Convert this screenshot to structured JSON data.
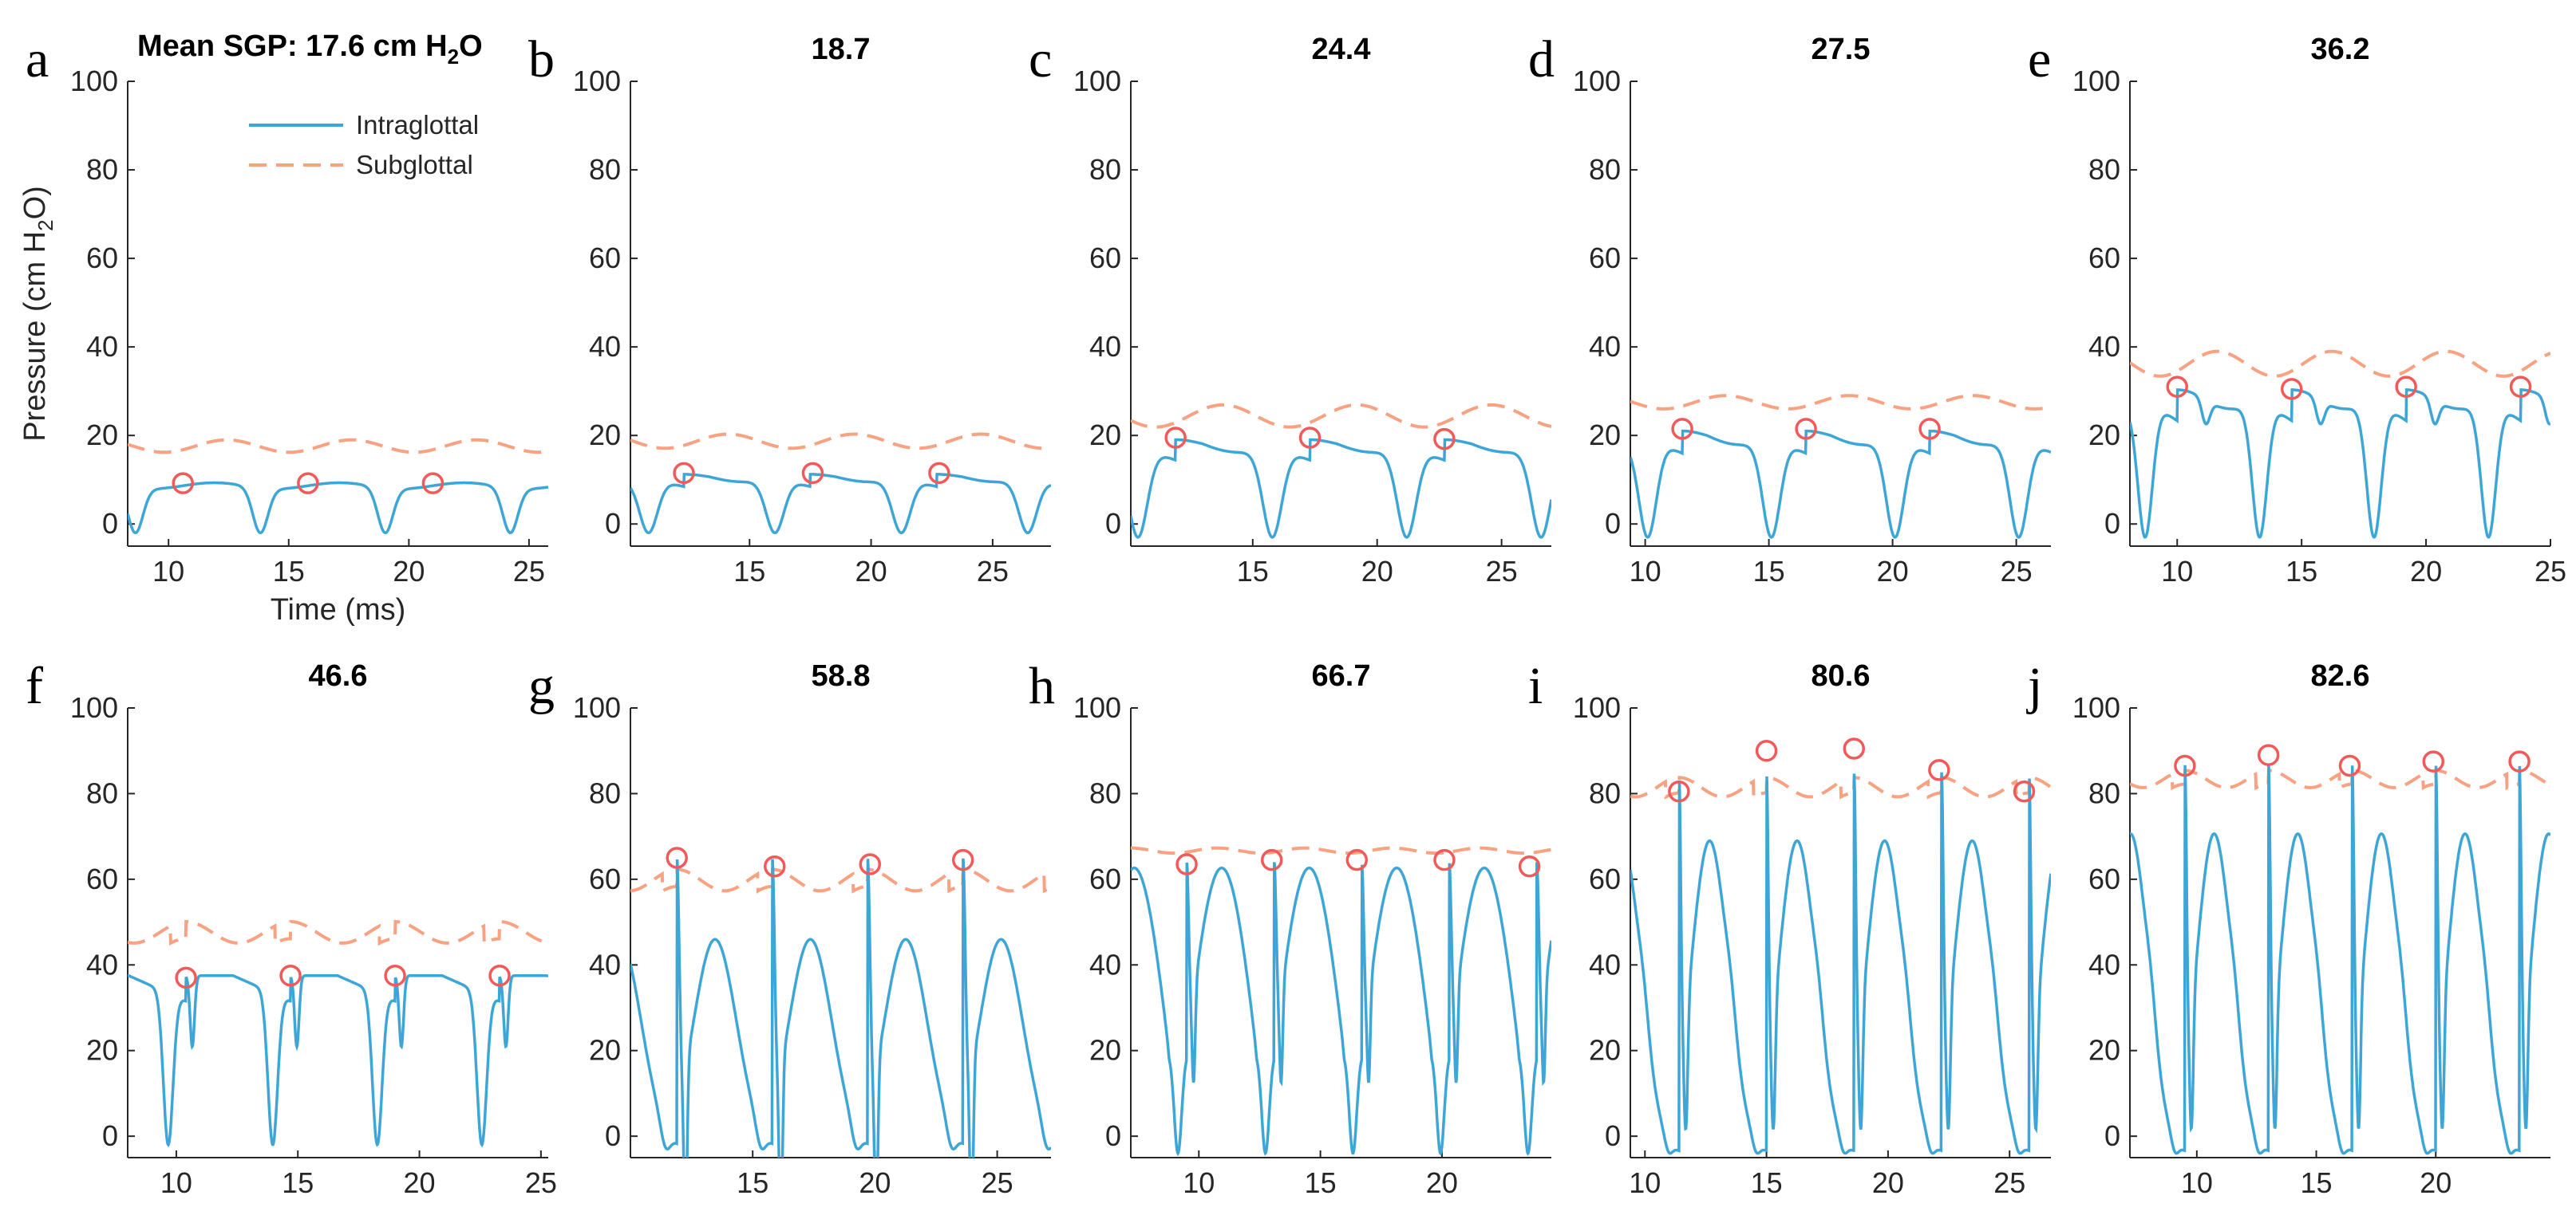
{
  "figure": {
    "title_prefix": "Mean SGP: ",
    "title_unit_main": "cm H",
    "title_unit_sub": "2",
    "title_unit_end": "O",
    "ylabel_main": "Pressure (cm H",
    "ylabel_sub": "2",
    "ylabel_end": "O)",
    "xlabel": "Time (ms)",
    "legend": [
      {
        "label": "Intraglottal",
        "color": "#3ea6d6",
        "style": "solid"
      },
      {
        "label": "Subglottal",
        "color": "#f8a282",
        "style": "dashed"
      }
    ],
    "marker_color": "#f25a5a"
  },
  "chart_data": [
    {
      "panel": "a",
      "type": "line",
      "title": "17.6",
      "ylim": [
        -5,
        100
      ],
      "yticks": [
        0,
        20,
        40,
        60,
        80,
        100
      ],
      "xlim": [
        8.3,
        25.8
      ],
      "xticks": [
        10,
        15,
        20,
        25
      ],
      "period": 5.2,
      "phase": 10.6,
      "sgp_mean": 17.6,
      "sgp_amp": 1.4,
      "ig_peak": 9.2,
      "ig_min": -2,
      "shape": 0,
      "peaks": [
        [
          10.6,
          9.2
        ],
        [
          15.8,
          9.2
        ],
        [
          21.0,
          9.2
        ]
      ]
    },
    {
      "panel": "b",
      "type": "line",
      "title": "18.7",
      "ylim": [
        -5,
        100
      ],
      "yticks": [
        0,
        20,
        40,
        60,
        80,
        100
      ],
      "xlim": [
        10.1,
        27.4
      ],
      "xticks": [
        15,
        20,
        25
      ],
      "period": 5.2,
      "phase": 12.3,
      "sgp_mean": 18.7,
      "sgp_amp": 1.6,
      "ig_peak": 11.5,
      "ig_min": -2,
      "shape": 1,
      "peaks": [
        [
          12.3,
          11.5
        ],
        [
          17.6,
          11.5
        ],
        [
          22.8,
          11.5
        ]
      ]
    },
    {
      "panel": "c",
      "type": "line",
      "title": "24.4",
      "ylim": [
        -5,
        100
      ],
      "yticks": [
        0,
        20,
        40,
        60,
        80,
        100
      ],
      "xlim": [
        10.1,
        27.0
      ],
      "xticks": [
        15,
        20,
        25
      ],
      "period": 5.4,
      "phase": 11.9,
      "sgp_mean": 24.4,
      "sgp_amp": 2.5,
      "ig_peak": 19.5,
      "ig_min": -3,
      "shape": 1,
      "peaks": [
        [
          11.9,
          19.5
        ],
        [
          17.3,
          19.5
        ],
        [
          22.7,
          19.2
        ]
      ]
    },
    {
      "panel": "d",
      "type": "line",
      "title": "27.5",
      "ylim": [
        -5,
        100
      ],
      "yticks": [
        0,
        20,
        40,
        60,
        80,
        100
      ],
      "xlim": [
        9.4,
        26.4
      ],
      "xticks": [
        10,
        15,
        20,
        25
      ],
      "period": 5.0,
      "phase": 11.5,
      "sgp_mean": 27.5,
      "sgp_amp": 1.5,
      "ig_peak": 21.5,
      "ig_min": -3,
      "shape": 1,
      "peaks": [
        [
          11.5,
          21.5
        ],
        [
          16.5,
          21.5
        ],
        [
          21.5,
          21.5
        ]
      ]
    },
    {
      "panel": "e",
      "type": "line",
      "title": "36.2",
      "ylim": [
        -5,
        100
      ],
      "yticks": [
        0,
        20,
        40,
        60,
        80,
        100
      ],
      "xlim": [
        8.1,
        25.0
      ],
      "xticks": [
        10,
        15,
        20,
        25
      ],
      "period": 4.6,
      "phase": 10.0,
      "sgp_mean": 36.2,
      "sgp_amp": 2.8,
      "ig_peak": 31,
      "ig_min": -3,
      "shape": 2,
      "peaks": [
        [
          10.0,
          31
        ],
        [
          14.6,
          30.5
        ],
        [
          19.2,
          31
        ],
        [
          23.8,
          31
        ]
      ]
    },
    {
      "panel": "f",
      "type": "line",
      "title": "46.6",
      "ylim": [
        -5,
        100
      ],
      "yticks": [
        0,
        20,
        40,
        60,
        80,
        100
      ],
      "xlim": [
        8.0,
        25.3
      ],
      "xticks": [
        10,
        15,
        20,
        25
      ],
      "period": 4.3,
      "phase": 10.4,
      "sgp_mean": 46.6,
      "sgp_amp": 5.0,
      "ig_peak": 37.5,
      "ig_min": -2,
      "shape": 3,
      "peaks": [
        [
          10.4,
          37
        ],
        [
          14.7,
          37.5
        ],
        [
          19.0,
          37.5
        ],
        [
          23.3,
          37.5
        ]
      ]
    },
    {
      "panel": "g",
      "type": "line",
      "title": "58.8",
      "ylim": [
        -5,
        100
      ],
      "yticks": [
        0,
        20,
        40,
        60,
        80,
        100
      ],
      "xlim": [
        10.0,
        27.2
      ],
      "xticks": [
        15,
        20,
        25
      ],
      "period": 3.9,
      "phase": 11.9,
      "sgp_mean": 58.8,
      "sgp_amp": 5.0,
      "ig_peak": 65,
      "ig_min": -3,
      "shape": 4,
      "peaks": [
        [
          11.9,
          65
        ],
        [
          15.9,
          63
        ],
        [
          19.8,
          63.5
        ],
        [
          23.6,
          64.5
        ]
      ]
    },
    {
      "panel": "h",
      "type": "line",
      "title": "66.7",
      "ylim": [
        -5,
        100
      ],
      "yticks": [
        0,
        20,
        40,
        60,
        80,
        100
      ],
      "xlim": [
        7.2,
        24.5
      ],
      "xticks": [
        10,
        15,
        20
      ],
      "period": 3.6,
      "phase": 9.5,
      "sgp_mean": 66.7,
      "sgp_amp": 0.6,
      "ig_peak": 64,
      "ig_min": -4,
      "shape": 5,
      "peaks": [
        [
          9.5,
          63.5
        ],
        [
          13.0,
          64.5
        ],
        [
          16.5,
          64.5
        ],
        [
          20.1,
          64.5
        ],
        [
          23.6,
          63
        ]
      ]
    },
    {
      "panel": "i",
      "type": "line",
      "title": "80.6",
      "ylim": [
        -5,
        100
      ],
      "yticks": [
        0,
        20,
        40,
        60,
        80,
        100
      ],
      "xlim": [
        9.4,
        26.7
      ],
      "xticks": [
        10,
        15,
        20,
        25
      ],
      "period": 3.6,
      "phase": 11.4,
      "sgp_mean": 80.6,
      "sgp_amp": 4.5,
      "ig_peak": 85,
      "ig_min": -4,
      "shape": 6,
      "peaks": [
        [
          11.4,
          80.5
        ],
        [
          15.0,
          90
        ],
        [
          18.6,
          90.5
        ],
        [
          22.1,
          85.5
        ],
        [
          25.6,
          80.5
        ]
      ]
    },
    {
      "panel": "j",
      "type": "line",
      "title": "82.6",
      "ylim": [
        -5,
        100
      ],
      "yticks": [
        0,
        20,
        40,
        60,
        80,
        100
      ],
      "xlim": [
        7.2,
        24.8
      ],
      "xticks": [
        10,
        15,
        20
      ],
      "period": 3.5,
      "phase": 9.5,
      "sgp_mean": 82.6,
      "sgp_amp": 4.0,
      "ig_peak": 87,
      "ig_min": -4,
      "shape": 6,
      "peaks": [
        [
          9.5,
          86.5
        ],
        [
          13.0,
          89
        ],
        [
          16.4,
          86.5
        ],
        [
          19.9,
          87.5
        ],
        [
          23.5,
          87.5
        ]
      ]
    }
  ]
}
